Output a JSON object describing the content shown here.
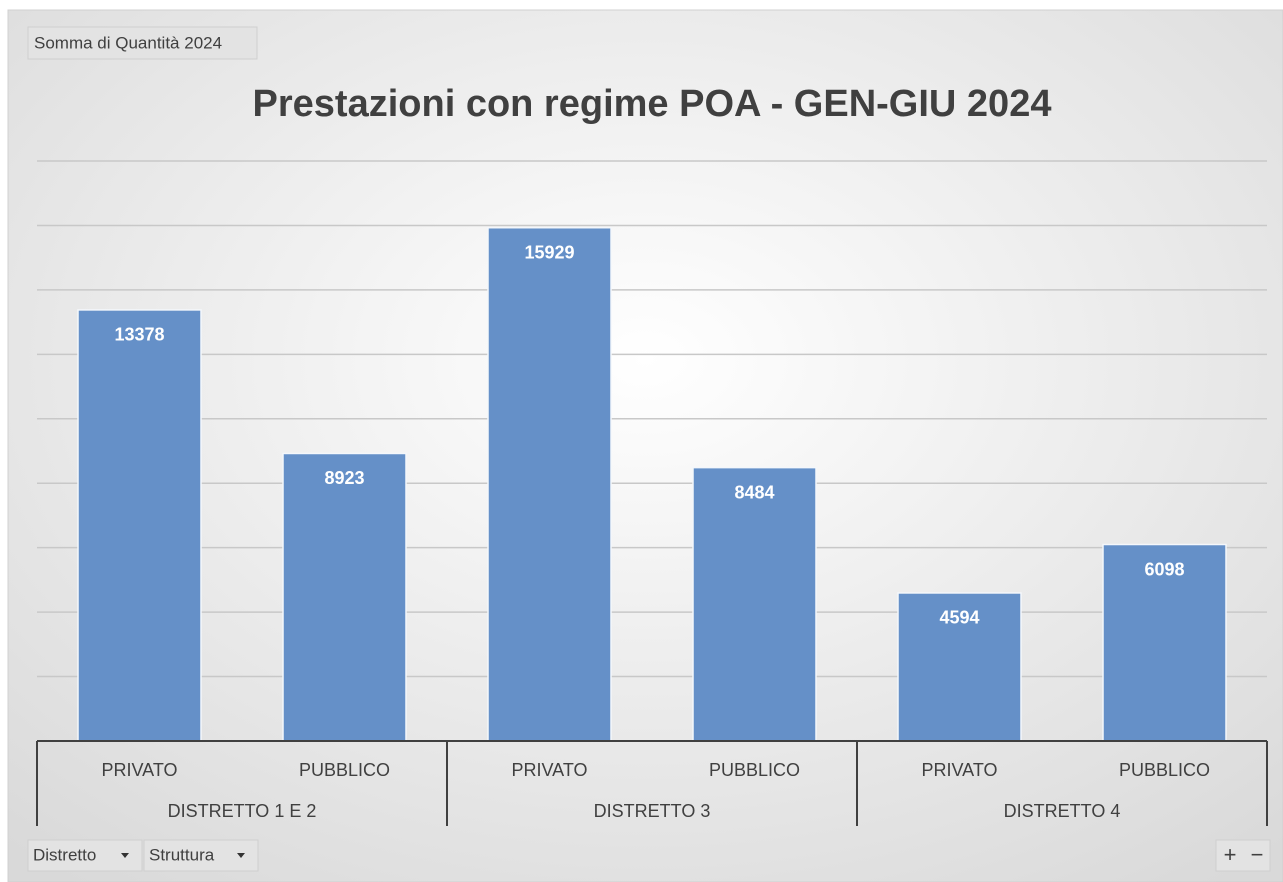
{
  "chart_data": {
    "type": "bar",
    "title": "Prestazioni con regime POA - GEN-GIU 2024",
    "categories": [
      "PRIVATO",
      "PUBBLICO",
      "PRIVATO",
      "PUBBLICO",
      "PRIVATO",
      "PUBBLICO"
    ],
    "groups": [
      "DISTRETTO 1 E 2",
      "DISTRETTO 3",
      "DISTRETTO 4"
    ],
    "values": [
      13378,
      8923,
      15929,
      8484,
      4594,
      6098
    ],
    "color": "#6590c8",
    "ylim": [
      0,
      18000
    ],
    "yticks": [
      0,
      2000,
      4000,
      6000,
      8000,
      10000,
      12000,
      14000,
      16000,
      18000
    ],
    "grid": true
  },
  "field_buttons": {
    "value_field": "Somma di Quantità 2024",
    "axis_fields": [
      "Distretto",
      "Struttura"
    ],
    "zoom": [
      "+",
      "−"
    ]
  }
}
